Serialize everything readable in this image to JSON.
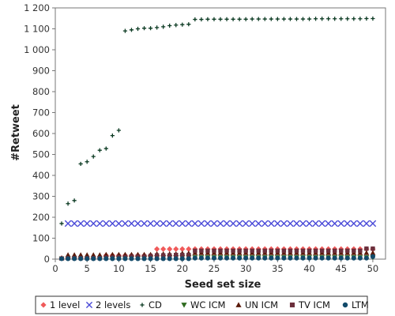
{
  "chart_data": {
    "type": "scatter",
    "title": "",
    "xlabel": "Seed set size",
    "ylabel": "#Retweet",
    "xlim": [
      0,
      52
    ],
    "ylim": [
      0,
      1200
    ],
    "xticks": [
      0,
      5,
      10,
      15,
      20,
      25,
      30,
      35,
      40,
      45,
      50
    ],
    "yticks": [
      0,
      100,
      200,
      300,
      400,
      500,
      600,
      700,
      800,
      900,
      1000,
      1100,
      1200
    ],
    "ytick_labels": [
      "0",
      "100",
      "200",
      "300",
      "400",
      "500",
      "600",
      "700",
      "800",
      "900",
      "1 000",
      "1 100",
      "1 200"
    ],
    "grid": false,
    "legend_position": "bottom",
    "x": [
      1,
      2,
      3,
      4,
      5,
      6,
      7,
      8,
      9,
      10,
      11,
      12,
      13,
      14,
      15,
      16,
      17,
      18,
      19,
      20,
      21,
      22,
      23,
      24,
      25,
      26,
      27,
      28,
      29,
      30,
      31,
      32,
      33,
      34,
      35,
      36,
      37,
      38,
      39,
      40,
      41,
      42,
      43,
      44,
      45,
      46,
      47,
      48,
      49,
      50
    ],
    "series": [
      {
        "name": "1 level",
        "marker": "diamond",
        "color": "#f05a5a",
        "values": [
          5,
          5,
          5,
          5,
          5,
          5,
          5,
          18,
          18,
          18,
          18,
          18,
          18,
          18,
          18,
          48,
          48,
          48,
          48,
          48,
          48,
          48,
          48,
          48,
          48,
          48,
          48,
          48,
          48,
          48,
          48,
          48,
          48,
          48,
          48,
          48,
          48,
          48,
          48,
          48,
          48,
          48,
          48,
          48,
          48,
          48,
          48,
          48,
          48,
          48
        ]
      },
      {
        "name": "2 levels",
        "marker": "x",
        "color": "#4a4ad8",
        "values": [
          null,
          170,
          170,
          170,
          170,
          170,
          170,
          170,
          170,
          170,
          170,
          170,
          170,
          170,
          170,
          170,
          170,
          170,
          170,
          170,
          170,
          170,
          170,
          170,
          170,
          170,
          170,
          170,
          170,
          170,
          170,
          170,
          170,
          170,
          170,
          170,
          170,
          170,
          170,
          170,
          170,
          170,
          170,
          170,
          170,
          170,
          170,
          170,
          170,
          170
        ]
      },
      {
        "name": "CD",
        "marker": "plus",
        "color": "#0b3a22",
        "values": [
          170,
          265,
          280,
          455,
          465,
          490,
          520,
          528,
          590,
          615,
          1090,
          1095,
          1100,
          1103,
          1103,
          1106,
          1110,
          1115,
          1118,
          1120,
          1122,
          1145,
          1145,
          1146,
          1146,
          1146,
          1146,
          1146,
          1146,
          1146,
          1147,
          1147,
          1147,
          1147,
          1147,
          1147,
          1147,
          1147,
          1147,
          1147,
          1148,
          1148,
          1148,
          1148,
          1148,
          1148,
          1148,
          1148,
          1149,
          1149
        ]
      },
      {
        "name": "WC ICM",
        "marker": "triangle-down",
        "color": "#2e6b1f",
        "values": [
          3,
          3,
          3,
          3,
          3,
          3,
          3,
          3,
          3,
          3,
          3,
          5,
          5,
          5,
          8,
          8,
          8,
          8,
          8,
          8,
          8,
          8,
          8,
          8,
          8,
          8,
          8,
          8,
          8,
          8,
          8,
          8,
          8,
          8,
          8,
          8,
          8,
          8,
          8,
          8,
          8,
          8,
          8,
          8,
          8,
          8,
          8,
          8,
          8,
          8
        ]
      },
      {
        "name": "UN ICM",
        "marker": "triangle-up",
        "color": "#5a1a0a",
        "values": [
          5,
          20,
          20,
          20,
          20,
          20,
          20,
          22,
          22,
          22,
          22,
          22,
          22,
          22,
          22,
          25,
          25,
          25,
          25,
          28,
          28,
          30,
          30,
          30,
          30,
          30,
          30,
          30,
          30,
          30,
          30,
          30,
          30,
          30,
          30,
          30,
          30,
          30,
          30,
          30,
          30,
          30,
          30,
          30,
          30,
          30,
          30,
          30,
          30,
          30
        ]
      },
      {
        "name": "TV ICM",
        "marker": "square",
        "color": "#6b2f3c",
        "values": [
          3,
          5,
          5,
          5,
          5,
          5,
          5,
          8,
          8,
          10,
          10,
          12,
          12,
          12,
          15,
          18,
          18,
          18,
          20,
          20,
          20,
          40,
          40,
          40,
          40,
          40,
          40,
          40,
          40,
          40,
          40,
          40,
          40,
          40,
          40,
          40,
          40,
          40,
          40,
          40,
          40,
          40,
          40,
          40,
          40,
          40,
          40,
          40,
          50,
          50
        ]
      },
      {
        "name": "LTM",
        "marker": "circle",
        "color": "#124a6a",
        "values": [
          2,
          2,
          2,
          2,
          2,
          2,
          2,
          2,
          2,
          2,
          2,
          2,
          2,
          2,
          2,
          2,
          2,
          2,
          2,
          2,
          2,
          5,
          5,
          5,
          5,
          5,
          5,
          5,
          5,
          5,
          5,
          5,
          5,
          5,
          5,
          5,
          5,
          5,
          5,
          5,
          5,
          5,
          5,
          5,
          5,
          5,
          5,
          5,
          5,
          12
        ]
      }
    ]
  }
}
